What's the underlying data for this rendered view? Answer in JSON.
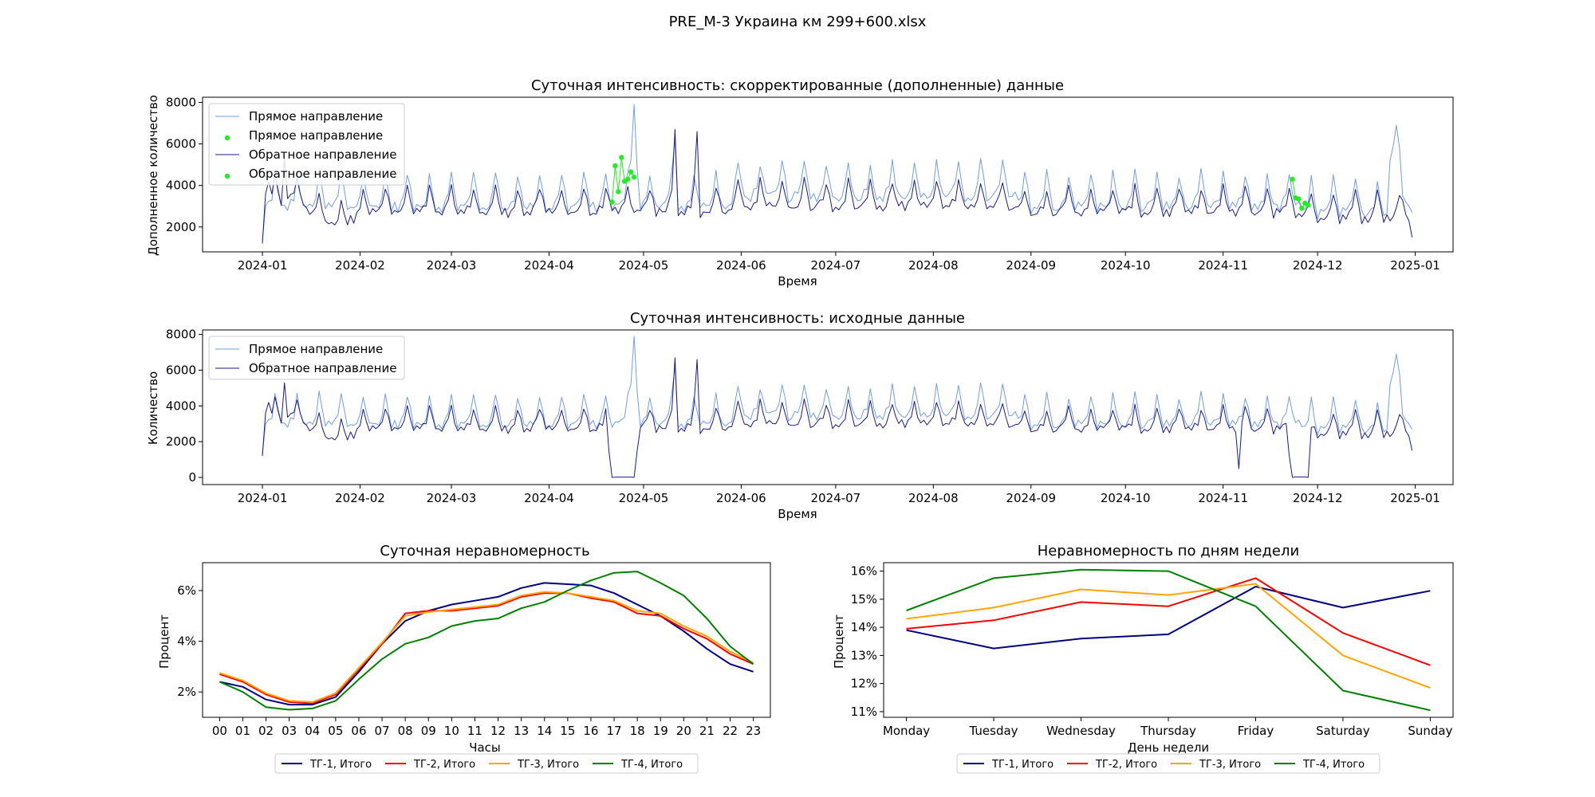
{
  "figure_title": "PRE_M-3 Украина км 299+600.xlsx",
  "colors": {
    "forward": "#6f9ee8",
    "backward": "#1a1a8c",
    "fill_points": "#22ee22",
    "tg1": "#000080",
    "tg2": "#ff0000",
    "tg3": "#ffa500",
    "tg4": "#008000"
  },
  "chart_data": [
    {
      "id": "corrected",
      "type": "line",
      "title": "Суточная интенсивность: скорректированные (дополненные) данные",
      "xlabel": "Время",
      "ylabel": "Дополненное количество",
      "x_ticks": [
        "2024-01",
        "2024-02",
        "2024-03",
        "2024-04",
        "2024-05",
        "2024-06",
        "2024-07",
        "2024-08",
        "2024-09",
        "2024-10",
        "2024-11",
        "2024-12",
        "2025-01"
      ],
      "y_ticks": [
        2000,
        4000,
        6000,
        8000
      ],
      "xlim": [
        "2023-12-13",
        "2025-01-13"
      ],
      "ylim": [
        800,
        8250
      ],
      "x_start": "2024-01-01",
      "legend": [
        "Прямое направление",
        "Прямое направление",
        "Обратное направление",
        "Обратное направление"
      ],
      "legend_position": "upper-left",
      "fill_points": [
        {
          "x": "2024-04-21",
          "y": 3200
        },
        {
          "x": "2024-04-22",
          "y": 4950
        },
        {
          "x": "2024-04-23",
          "y": 3700
        },
        {
          "x": "2024-04-24",
          "y": 5350
        },
        {
          "x": "2024-04-25",
          "y": 4200
        },
        {
          "x": "2024-04-26",
          "y": 4300
        },
        {
          "x": "2024-04-27",
          "y": 4650
        },
        {
          "x": "2024-04-28",
          "y": 4400
        },
        {
          "x": "2024-11-23",
          "y": 4300
        },
        {
          "x": "2024-11-24",
          "y": 3400
        },
        {
          "x": "2024-11-25",
          "y": 3350
        },
        {
          "x": "2024-11-26",
          "y": 2900
        },
        {
          "x": "2024-11-27",
          "y": 3150
        },
        {
          "x": "2024-11-28",
          "y": 3050
        }
      ]
    },
    {
      "id": "raw",
      "type": "line",
      "title": "Суточная интенсивность: исходные данные",
      "xlabel": "Время",
      "ylabel": "Количество",
      "x_ticks": [
        "2024-01",
        "2024-02",
        "2024-03",
        "2024-04",
        "2024-05",
        "2024-06",
        "2024-07",
        "2024-08",
        "2024-09",
        "2024-10",
        "2024-11",
        "2024-12",
        "2025-01"
      ],
      "y_ticks": [
        0,
        2000,
        4000,
        6000,
        8000
      ],
      "xlim": [
        "2023-12-13",
        "2025-01-13"
      ],
      "ylim": [
        -400,
        8250
      ],
      "x_start": "2024-01-01",
      "legend": [
        "Прямое направление",
        "Обратное направление"
      ],
      "legend_position": "upper-left",
      "series_approx": [
        {
          "name": "Прямое направление",
          "description": "weekly-periodic daily counts 2500–5500 with peaks 7800 (late April) and 6900 (late December)"
        },
        {
          "name": "Обратное направление",
          "description": "weekly-periodic daily counts 2500–4500, gaps near zero 2024-04-21..28 and 2024-11-23..28"
        }
      ]
    },
    {
      "id": "hourly",
      "type": "line",
      "title": "Суточная неравномерность",
      "xlabel": "Часы",
      "ylabel": "Процент",
      "categories": [
        "00",
        "01",
        "02",
        "03",
        "04",
        "05",
        "06",
        "07",
        "08",
        "09",
        "10",
        "11",
        "12",
        "13",
        "14",
        "15",
        "16",
        "17",
        "18",
        "19",
        "20",
        "21",
        "22",
        "23"
      ],
      "y_ticks": [
        "2%",
        "4%",
        "6%"
      ],
      "y_tick_values": [
        2,
        4,
        6
      ],
      "ylim": [
        1.0,
        7.1
      ],
      "legend_position": "lower-center",
      "series": [
        {
          "name": "ТГ-1, Итого",
          "color": "#000080",
          "values": [
            2.4,
            2.2,
            1.7,
            1.5,
            1.5,
            1.8,
            2.8,
            3.9,
            4.8,
            5.2,
            5.45,
            5.6,
            5.75,
            6.1,
            6.3,
            6.25,
            6.2,
            5.9,
            5.45,
            5.0,
            4.4,
            3.7,
            3.1,
            2.8
          ]
        },
        {
          "name": "ТГ-2, Итого",
          "color": "#ff0000",
          "values": [
            2.7,
            2.4,
            1.9,
            1.6,
            1.55,
            1.9,
            2.9,
            3.9,
            5.1,
            5.2,
            5.2,
            5.3,
            5.4,
            5.75,
            5.9,
            5.9,
            5.7,
            5.55,
            5.1,
            5.0,
            4.5,
            4.1,
            3.5,
            3.1
          ]
        },
        {
          "name": "ТГ-3, Итого",
          "color": "#ffa500",
          "values": [
            2.75,
            2.45,
            1.95,
            1.65,
            1.6,
            1.95,
            2.95,
            3.95,
            5.0,
            5.15,
            5.25,
            5.35,
            5.45,
            5.8,
            5.95,
            5.9,
            5.75,
            5.6,
            5.2,
            5.1,
            4.6,
            4.2,
            3.6,
            3.15
          ]
        },
        {
          "name": "ТГ-4, Итого",
          "color": "#008000",
          "values": [
            2.4,
            2.0,
            1.4,
            1.3,
            1.35,
            1.65,
            2.5,
            3.3,
            3.9,
            4.15,
            4.6,
            4.8,
            4.9,
            5.3,
            5.55,
            6.0,
            6.4,
            6.7,
            6.75,
            6.3,
            5.8,
            4.9,
            3.8,
            3.1
          ]
        }
      ]
    },
    {
      "id": "weekday",
      "type": "line",
      "title": "Неравномерность по дням недели",
      "xlabel": "День недели",
      "ylabel": "Процент",
      "categories": [
        "Monday",
        "Tuesday",
        "Wednesday",
        "Thursday",
        "Friday",
        "Saturday",
        "Sunday"
      ],
      "y_ticks": [
        "11%",
        "12%",
        "13%",
        "14%",
        "15%",
        "16%"
      ],
      "y_tick_values": [
        11,
        12,
        13,
        14,
        15,
        16
      ],
      "ylim": [
        10.8,
        16.3
      ],
      "legend_position": "lower-center",
      "series": [
        {
          "name": "ТГ-1, Итого",
          "color": "#000080",
          "values": [
            13.9,
            13.25,
            13.6,
            13.75,
            15.45,
            14.7,
            15.3
          ]
        },
        {
          "name": "ТГ-2, Итого",
          "color": "#ff0000",
          "values": [
            13.95,
            14.25,
            14.9,
            14.75,
            15.75,
            13.8,
            12.65
          ]
        },
        {
          "name": "ТГ-3, Итого",
          "color": "#ffa500",
          "values": [
            14.3,
            14.7,
            15.35,
            15.15,
            15.55,
            13.0,
            11.85
          ]
        },
        {
          "name": "ТГ-4, Итого",
          "color": "#008000",
          "values": [
            14.6,
            15.75,
            16.05,
            16.0,
            14.75,
            11.75,
            11.05
          ]
        }
      ]
    }
  ]
}
